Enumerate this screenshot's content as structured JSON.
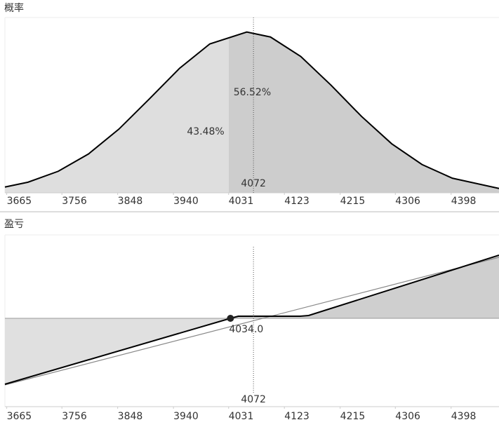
{
  "chart_data": [
    {
      "type": "area",
      "title": "概率",
      "x": [
        3662,
        3700,
        3750,
        3800,
        3850,
        3900,
        3950,
        4000,
        4061,
        4100,
        4150,
        4200,
        4250,
        4300,
        4350,
        4400,
        4477
      ],
      "values": [
        0.036,
        0.066,
        0.134,
        0.242,
        0.396,
        0.583,
        0.774,
        0.926,
        1,
        0.969,
        0.848,
        0.669,
        0.476,
        0.305,
        0.176,
        0.091,
        0.027
      ],
      "split": 4031,
      "colors": [
        "#dedede",
        "#cdcdcd"
      ],
      "shares": [
        {
          "value": 43.48,
          "label": "43.48%"
        },
        {
          "value": 56.52,
          "label": "56.52%"
        }
      ],
      "marker": {
        "value": 4072,
        "label": "4072"
      },
      "xlim": [
        3662,
        4477
      ],
      "ylim": [
        0,
        1.09
      ],
      "xticks": [
        3665,
        3756,
        3848,
        3940,
        4031,
        4123,
        4215,
        4306,
        4398
      ]
    },
    {
      "type": "line",
      "title": "盈亏",
      "series": [
        {
          "color": "#000000",
          "x": [
            3662,
            4034,
            4047,
            4149,
            4163,
            4477
          ],
          "values": [
            -94,
            0,
            3,
            3,
            4,
            90
          ]
        },
        {
          "color": "#888888",
          "x": [
            3662,
            4477
          ],
          "values": [
            -95,
            87
          ]
        }
      ],
      "breakeven": {
        "value": 4034,
        "label": "4034.0"
      },
      "colors": [
        "#e0e0e0",
        "#cfcfcf"
      ],
      "marker": {
        "value": 4072,
        "label": "4072"
      },
      "xlim": [
        3662,
        4477
      ],
      "ylim": [
        -126,
        119
      ],
      "xticks": [
        3665,
        3756,
        3848,
        3940,
        4031,
        4123,
        4215,
        4306,
        4398
      ]
    }
  ]
}
